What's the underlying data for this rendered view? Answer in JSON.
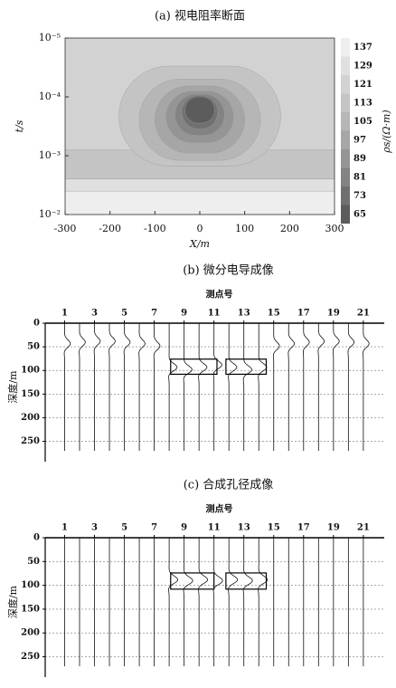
{
  "chart_data": [
    {
      "type": "contour",
      "title": "(a) 视电阻率断面",
      "xlabel": "X/m",
      "ylabel": "t/s",
      "colorbar_label": "ρs/(Ω·m)",
      "xlim": [
        -300,
        300
      ],
      "xticks": [
        -300,
        -200,
        -100,
        0,
        100,
        200,
        300
      ],
      "ylim": [
        1e-05,
        0.01
      ],
      "y_log": true,
      "y_inverted": true,
      "yticks": [
        {
          "value": 1e-05,
          "label": "10⁻⁵"
        },
        {
          "value": 0.0001,
          "label": "10⁻⁴"
        },
        {
          "value": 0.001,
          "label": "10⁻³"
        },
        {
          "value": 0.01,
          "label": "10⁻²"
        }
      ],
      "levels": [
        137,
        129,
        121,
        113,
        105,
        97,
        89,
        81,
        73,
        65
      ],
      "colors": [
        "#eeeeee",
        "#e0e0e0",
        "#d2d2d2",
        "#c4c4c4",
        "#b6b6b6",
        "#a6a6a6",
        "#959595",
        "#838383",
        "#707070",
        "#5c5c5c"
      ],
      "regions": [
        {
          "level": 121,
          "x": [
            -300,
            300
          ],
          "t": [
            1e-05,
            0.01
          ]
        },
        {
          "level": 113,
          "x": [
            -300,
            300
          ],
          "t": [
            0.0008,
            0.0025
          ]
        },
        {
          "level": 129,
          "x": [
            -300,
            300
          ],
          "t": [
            0.0025,
            0.01
          ]
        },
        {
          "level": 137,
          "x": [
            -300,
            300
          ],
          "t": [
            0.004,
            0.01
          ]
        },
        {
          "level": 113,
          "x": [
            -180,
            180
          ],
          "t": [
            3e-05,
            0.0015
          ]
        },
        {
          "level": 105,
          "x": [
            -135,
            135
          ],
          "t": [
            5e-05,
            0.0012
          ]
        },
        {
          "level": 97,
          "x": [
            -100,
            100
          ],
          "t": [
            6.5e-05,
            0.0009
          ]
        },
        {
          "level": 89,
          "x": [
            -75,
            75
          ],
          "t": [
            8e-05,
            0.0006
          ]
        },
        {
          "level": 81,
          "x": [
            -55,
            55
          ],
          "t": [
            9e-05,
            0.00045
          ]
        },
        {
          "level": 73,
          "x": [
            -40,
            40
          ],
          "t": [
            9.5e-05,
            0.00035
          ]
        },
        {
          "level": 65,
          "x": [
            -33,
            33
          ],
          "t": [
            0.0001,
            0.00028
          ]
        }
      ]
    },
    {
      "type": "wiggle",
      "title": "(b) 微分电导成像",
      "x_title": "测点号",
      "ylabel": "深度/m",
      "x": [
        1,
        2,
        3,
        4,
        5,
        6,
        7,
        8,
        9,
        10,
        11,
        12,
        13,
        14,
        15,
        16,
        17,
        18,
        19,
        20,
        21
      ],
      "xlim": [
        -0.3,
        22.4
      ],
      "xticks": [
        1,
        3,
        5,
        7,
        9,
        11,
        13,
        15,
        17,
        19,
        21
      ],
      "ylim": [
        0,
        270
      ],
      "y_inverted": true,
      "yticks": [
        0,
        50,
        100,
        150,
        200,
        250
      ],
      "grid": true,
      "peak_depth": [
        45,
        42,
        40,
        40,
        42,
        45,
        50,
        95,
        100,
        95,
        90,
        95,
        100,
        95,
        50,
        45,
        42,
        40,
        40,
        42,
        45
      ],
      "amplitude": [
        0.4,
        0.4,
        0.4,
        0.4,
        0.4,
        0.4,
        0.4,
        0.55,
        0.55,
        0.55,
        0.55,
        0.55,
        0.55,
        0.55,
        0.4,
        0.4,
        0.4,
        0.4,
        0.4,
        0.4,
        0.4
      ],
      "boxes": [
        {
          "x": [
            8.1,
            11.2
          ],
          "depth": [
            76,
            108
          ]
        },
        {
          "x": [
            11.8,
            14.5
          ],
          "depth": [
            76,
            108
          ]
        }
      ]
    },
    {
      "type": "wiggle",
      "title": "(c) 合成孔径成像",
      "x_title": "测点号",
      "ylabel": "深度/m",
      "x": [
        1,
        2,
        3,
        4,
        5,
        6,
        7,
        8,
        9,
        10,
        11,
        12,
        13,
        14,
        15,
        16,
        17,
        18,
        19,
        20,
        21
      ],
      "xlim": [
        -0.3,
        22.4
      ],
      "xticks": [
        1,
        3,
        5,
        7,
        9,
        11,
        13,
        15,
        17,
        19,
        21
      ],
      "ylim": [
        0,
        270
      ],
      "y_inverted": true,
      "yticks": [
        0,
        50,
        100,
        150,
        200,
        250
      ],
      "grid": true,
      "peak_depth": [
        null,
        null,
        null,
        null,
        null,
        null,
        null,
        90,
        92,
        90,
        92,
        90,
        92,
        90,
        null,
        null,
        null,
        null,
        null,
        null,
        null
      ],
      "amplitude": [
        null,
        null,
        null,
        null,
        null,
        null,
        null,
        0.6,
        0.6,
        0.6,
        0.6,
        0.6,
        0.6,
        0.6,
        null,
        null,
        null,
        null,
        null,
        null,
        null
      ],
      "boxes": [
        {
          "x": [
            8.1,
            11.0
          ],
          "depth": [
            74,
            108
          ]
        },
        {
          "x": [
            11.8,
            14.5
          ],
          "depth": [
            74,
            108
          ]
        }
      ]
    }
  ]
}
